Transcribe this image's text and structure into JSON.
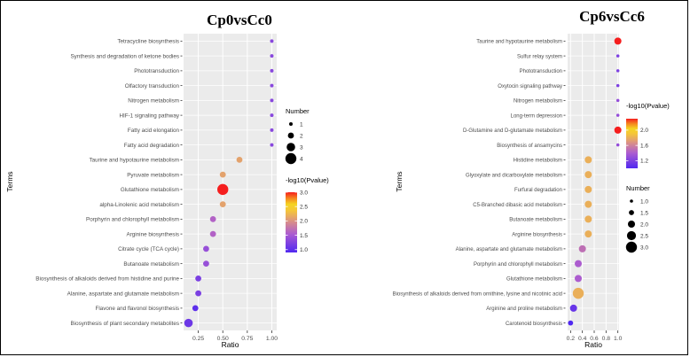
{
  "chart_data": [
    {
      "type": "scatter",
      "title": "Cp0vsCc0",
      "xlabel": "Ratio",
      "ylabel": "Terms",
      "xlim": [
        0.1,
        1.05
      ],
      "x_ticks": [
        "0.25",
        "0.50",
        "0.75",
        "1.00"
      ],
      "x_tick_values": [
        0.25,
        0.5,
        0.75,
        1.0
      ],
      "terms": [
        "Tetracycline biosynthesis",
        "Synthesis and degradation of ketone bodies",
        "Phototransduction",
        "Olfactory transduction",
        "Nitrogen metabolism",
        "HIF-1 signaling pathway",
        "Fatty acid elongation",
        "Fatty acid degradation",
        "Taurine and hypotaurine metabolism",
        "Pyruvate metabolism",
        "Glutathione metabolism",
        "alpha-Linolenic acid metabolism",
        "Porphyrin and chlorophyll metabolism",
        "Arginine biosynthesis",
        "Citrate cycle (TCA cycle)",
        "Butanoate metabolism",
        "Biosynthesis of alkaloids derived from histidine and purine",
        "Alanine, aspartate and glutamate metabolism",
        "Flavone and flavonol biosynthesis",
        "Biosynthesis of plant secondary metabolites"
      ],
      "ratio": [
        1.0,
        1.0,
        1.0,
        1.0,
        1.0,
        1.0,
        1.0,
        1.0,
        0.67,
        0.5,
        0.5,
        0.5,
        0.4,
        0.4,
        0.33,
        0.33,
        0.25,
        0.25,
        0.22,
        0.15
      ],
      "number": [
        1,
        1,
        1,
        1,
        1,
        1,
        1,
        1,
        2,
        2,
        4,
        2,
        2,
        2,
        2,
        2,
        2,
        2,
        2,
        3
      ],
      "neg_log10_pvalue": [
        1.3,
        1.3,
        1.3,
        1.3,
        1.3,
        1.3,
        1.3,
        1.3,
        2.1,
        2.1,
        3.0,
        2.1,
        1.6,
        1.6,
        1.4,
        1.4,
        1.2,
        1.2,
        1.0,
        1.1
      ],
      "legend_number": {
        "title": "Number",
        "values": [
          1,
          2,
          3,
          4
        ],
        "labels": [
          "1",
          "2",
          "3",
          "4"
        ]
      },
      "legend_color": {
        "title": "-log10(Pvalue)",
        "min": 0.9,
        "max": 3.0,
        "ticks": [
          1.0,
          1.5,
          2.0,
          2.5,
          3.0
        ],
        "tick_labels": [
          "1.0",
          "1.5",
          "2.0",
          "2.5",
          "3.0"
        ]
      },
      "grid": true
    },
    {
      "type": "scatter",
      "title": "Cp6vsCc6",
      "xlabel": "Ratio",
      "ylabel": "Terms",
      "xlim": [
        0.15,
        1.02
      ],
      "x_ticks": [
        "0.2",
        "0.4",
        "0.6",
        "0.8",
        "1.0"
      ],
      "x_tick_values": [
        0.2,
        0.4,
        0.6,
        0.8,
        1.0
      ],
      "terms": [
        "Taurine and hypotaurine metabolism",
        "Sulfur relay system",
        "Phototransduction",
        "Oxytocin signaling pathway",
        "Nitrogen metabolism",
        "Long-term depression",
        "D-Glutamine and D-glutamate metabolism",
        "Biosynthesis of ansamycins",
        "Histidine metabolism",
        "Glyoxylate and dicarboxylate metabolism",
        "Furfural degradation",
        "C5-Branched dibasic acid metabolism",
        "Butanoate metabolism",
        "Arginine biosynthesis",
        "Alanine, aspartate and glutamate metabolism",
        "Porphyrin and chlorophyll metabolism",
        "Glutathione metabolism",
        "Biosynthesis of alkaloids derived from ornithine, lysine and nicotinic acid",
        "Arginine and proline metabolism",
        "Carotenoid biosynthesis"
      ],
      "ratio": [
        1.0,
        1.0,
        1.0,
        1.0,
        1.0,
        1.0,
        1.0,
        1.0,
        0.5,
        0.5,
        0.5,
        0.5,
        0.5,
        0.5,
        0.4,
        0.33,
        0.33,
        0.33,
        0.25,
        0.2
      ],
      "number": [
        2,
        1,
        1,
        1,
        1,
        1,
        2,
        1,
        2,
        2,
        2,
        2,
        2,
        2,
        2,
        2,
        2,
        3,
        2,
        1.5
      ],
      "neg_log10_pvalue": [
        2.3,
        1.2,
        1.2,
        1.2,
        1.3,
        1.3,
        2.3,
        1.3,
        1.8,
        1.8,
        1.8,
        1.8,
        1.8,
        1.8,
        1.5,
        1.4,
        1.4,
        1.8,
        1.1,
        1.0
      ],
      "legend_number": {
        "title": "Number",
        "values": [
          1.0,
          1.5,
          2.0,
          2.5,
          3.0
        ],
        "labels": [
          "1.0",
          "1.5",
          "2.0",
          "2.5",
          "3.0"
        ]
      },
      "legend_color": {
        "title": "-log10(Pvalue)",
        "min": 1.0,
        "max": 2.3,
        "ticks": [
          1.2,
          1.6,
          2.0
        ],
        "tick_labels": [
          "1.2",
          "1.6",
          "2.0"
        ]
      },
      "grid": true
    }
  ]
}
